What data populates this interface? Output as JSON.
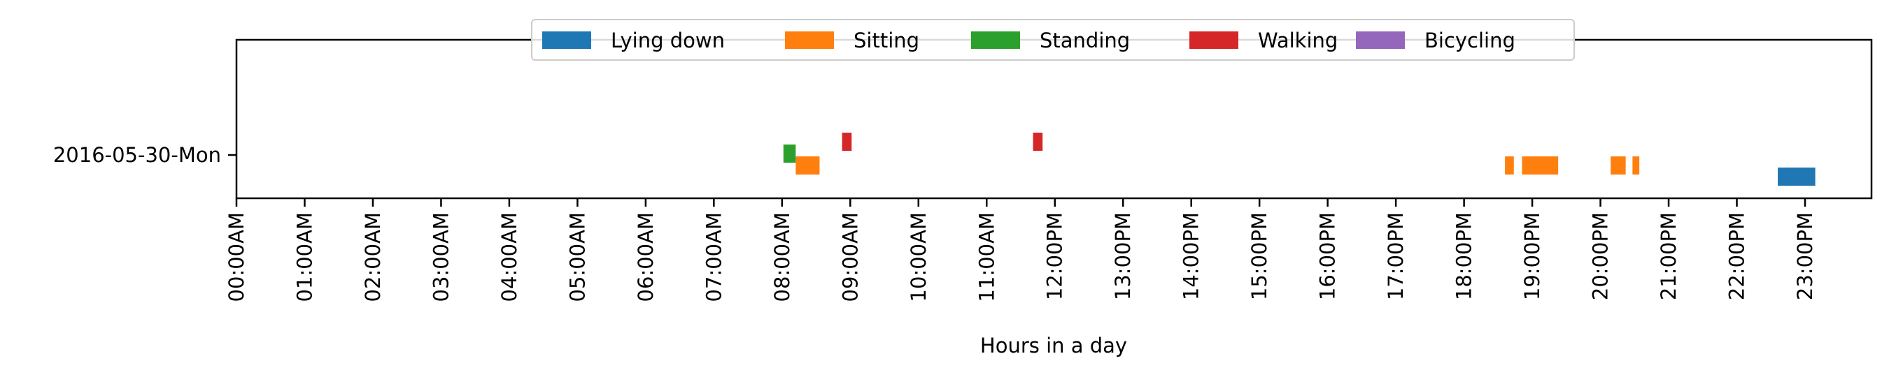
{
  "chart_data": {
    "type": "timeline",
    "xlabel": "Hours in a day",
    "ylabel": "",
    "xlim": [
      0,
      24
    ],
    "x_tick_labels": [
      "00:00AM",
      "01:00AM",
      "02:00AM",
      "03:00AM",
      "04:00AM",
      "05:00AM",
      "06:00AM",
      "07:00AM",
      "08:00AM",
      "09:00AM",
      "10:00AM",
      "11:00AM",
      "12:00PM",
      "13:00PM",
      "14:00PM",
      "15:00PM",
      "16:00PM",
      "17:00PM",
      "18:00PM",
      "19:00PM",
      "20:00PM",
      "21:00PM",
      "22:00PM",
      "23:00PM"
    ],
    "rows": [
      "2016-05-30-Mon"
    ],
    "legend": {
      "placement": "top-center"
    },
    "grid": false,
    "series": [
      {
        "name": "Lying down",
        "color": "#1f77b4",
        "intervals": [
          [
            22.6,
            23.15
          ]
        ]
      },
      {
        "name": "Sitting",
        "color": "#ff7f0e",
        "intervals": [
          [
            8.2,
            8.55
          ],
          [
            18.6,
            18.73
          ],
          [
            18.85,
            19.38
          ],
          [
            20.15,
            20.37
          ],
          [
            20.47,
            20.57
          ]
        ]
      },
      {
        "name": "Standing",
        "color": "#2ca02c",
        "intervals": [
          [
            8.02,
            8.2
          ]
        ]
      },
      {
        "name": "Walking",
        "color": "#d62728",
        "intervals": [
          [
            8.88,
            9.02
          ],
          [
            11.68,
            11.82
          ]
        ]
      },
      {
        "name": "Bicycling",
        "color": "#9467bd",
        "intervals": []
      }
    ]
  }
}
